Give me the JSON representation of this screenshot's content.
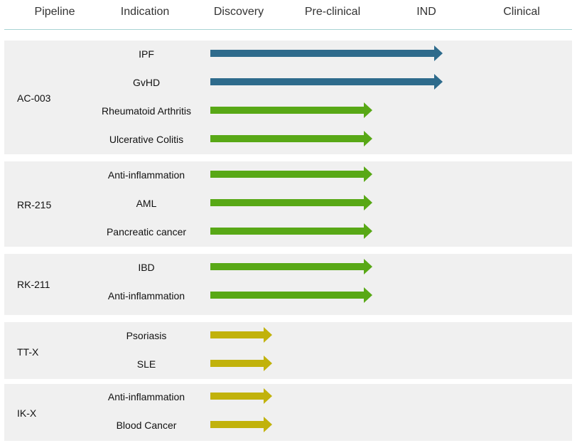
{
  "headers": [
    "Pipeline",
    "Indication",
    "Discovery",
    "Pre-clinical",
    "IND",
    "Clinical"
  ],
  "colors": {
    "blue": "#2e6b8c",
    "green": "#58a816",
    "olive": "#c1b20b",
    "rule": "#a7d4d3",
    "panel": "#f0f0f0"
  },
  "chart_data": {
    "type": "bar",
    "stages": [
      "Discovery",
      "Pre-clinical",
      "IND",
      "Clinical"
    ],
    "groups": [
      {
        "name": "AC-003",
        "rows": [
          {
            "indication": "IPF",
            "reached": "IND",
            "color": "blue"
          },
          {
            "indication": "GvHD",
            "reached": "IND",
            "color": "blue"
          },
          {
            "indication": "Rheumatoid Arthritis",
            "reached": "Pre-clinical",
            "color": "green"
          },
          {
            "indication": "Ulcerative Colitis",
            "reached": "Pre-clinical",
            "color": "green"
          }
        ]
      },
      {
        "name": "RR-215",
        "rows": [
          {
            "indication": "Anti-inflammation",
            "reached": "Pre-clinical",
            "color": "green"
          },
          {
            "indication": "AML",
            "reached": "Pre-clinical",
            "color": "green"
          },
          {
            "indication": "Pancreatic cancer",
            "reached": "Pre-clinical",
            "color": "green"
          }
        ]
      },
      {
        "name": "RK-211",
        "rows": [
          {
            "indication": "IBD",
            "reached": "Pre-clinical",
            "color": "green"
          },
          {
            "indication": "Anti-inflammation",
            "reached": "Pre-clinical",
            "color": "green"
          }
        ]
      },
      {
        "name": "TT-X",
        "rows": [
          {
            "indication": "Psoriasis",
            "reached": "Discovery",
            "color": "olive"
          },
          {
            "indication": "SLE",
            "reached": "Discovery",
            "color": "olive"
          }
        ]
      },
      {
        "name": "IK-X",
        "rows": [
          {
            "indication": "Anti-inflammation",
            "reached": "Discovery",
            "color": "olive"
          },
          {
            "indication": "Blood Cancer",
            "reached": "Discovery",
            "color": "olive"
          }
        ]
      }
    ]
  }
}
